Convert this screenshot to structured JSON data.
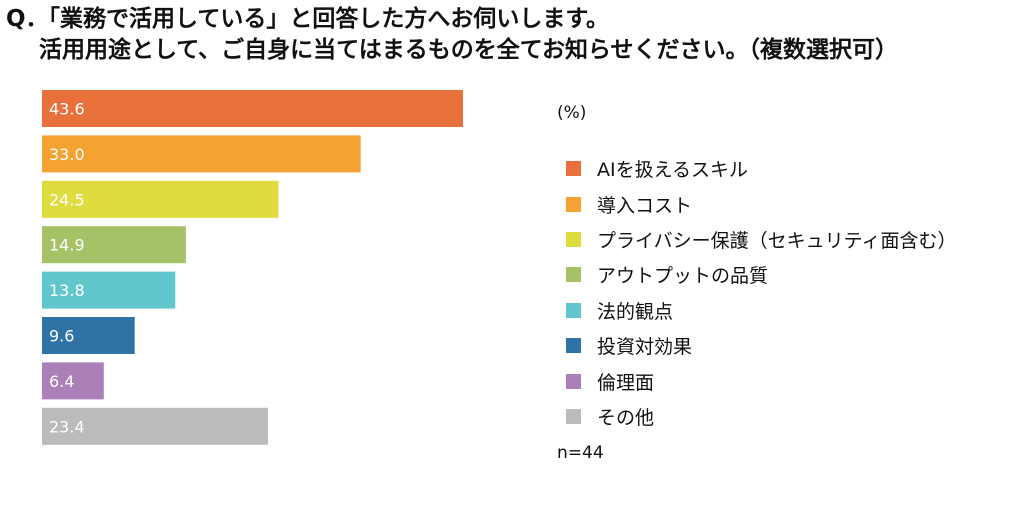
{
  "question": {
    "line1": "Q．「業務で活用している」と回答した方へお伺いします。",
    "line2": "活用用途として、ご自身に当てはまるものを全てお知らせください。（複数選択可）"
  },
  "chart_data": {
    "type": "bar",
    "orientation": "horizontal",
    "unit": "(%)",
    "categories": [
      "AIを扱えるスキル",
      "導入コスト",
      "プライバシー保護（セキュリティ面含む）",
      "アウトプットの品質",
      "法的観点",
      "投資対効果",
      "倫理面",
      "その他"
    ],
    "values": [
      43.6,
      33.0,
      24.5,
      14.9,
      13.8,
      9.6,
      6.4,
      23.4
    ],
    "value_labels": [
      "43.6",
      "33.0",
      "24.5",
      "14.9",
      "13.8",
      "9.6",
      "6.4",
      "23.4"
    ],
    "colors": [
      "#e8703a",
      "#f4a332",
      "#dedc3e",
      "#a5c266",
      "#62c7cd",
      "#2f73a6",
      "#ab80b9",
      "#bbbbbb"
    ],
    "legend_position": "right",
    "grid": false,
    "n_note": "n=44"
  }
}
